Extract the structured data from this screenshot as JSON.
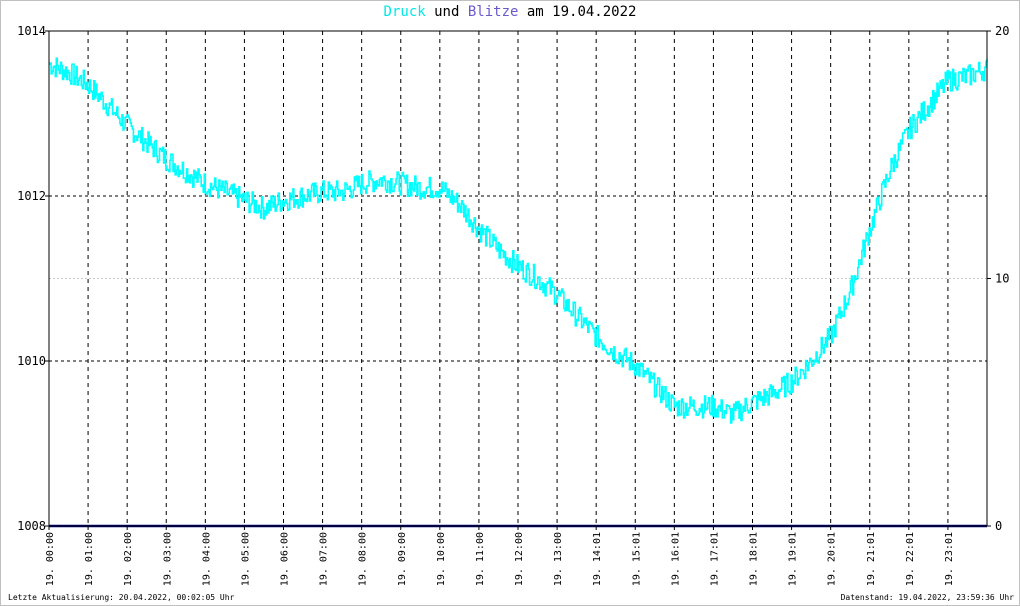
{
  "title": {
    "part1": "Druck",
    "part1_color": "#00e8e8",
    "part2": " und ",
    "part3": "Blitze",
    "part3_color": "#6a5acd",
    "part4": " am 19.04.2022"
  },
  "footer": {
    "left": "Letzte Aktualisierung: 20.04.2022, 00:02:05 Uhr",
    "right": "Datenstand: 19.04.2022, 23:59:36 Uhr"
  },
  "chart_data": {
    "type": "line",
    "x_tick_labels": [
      "19. 00:00",
      "19. 01:00",
      "19. 02:00",
      "19. 03:00",
      "19. 04:00",
      "19. 05:00",
      "19. 06:00",
      "19. 07:00",
      "19. 08:00",
      "19. 09:00",
      "19. 10:00",
      "19. 11:00",
      "19. 12:00",
      "19. 13:00",
      "19. 14:01",
      "19. 15:01",
      "19. 16:01",
      "19. 17:01",
      "19. 18:01",
      "19. 19:01",
      "19. 20:01",
      "19. 21:01",
      "19. 22:01",
      "19. 23:01"
    ],
    "x_tick_hours": [
      0,
      1,
      2,
      3,
      4,
      5,
      6,
      7,
      8,
      9,
      10,
      11,
      12,
      13,
      14,
      15,
      16,
      17,
      18,
      19,
      20,
      21,
      22,
      23
    ],
    "x_range_hours": [
      0,
      24
    ],
    "left_axis": {
      "ticks": [
        "1008",
        "1010",
        "1012",
        "1014"
      ],
      "ylim": [
        1008,
        1014
      ]
    },
    "right_axis": {
      "ticks": [
        "0",
        "10",
        "20"
      ],
      "ylim": [
        0,
        20
      ]
    },
    "grid": true,
    "series": [
      {
        "name": "Druck",
        "axis": "left",
        "color": "#00ffff",
        "x": [
          0,
          0.5,
          1,
          1.5,
          2,
          2.5,
          3,
          3.5,
          4,
          4.5,
          5,
          5.5,
          6,
          6.5,
          7,
          7.5,
          8,
          8.5,
          9,
          9.5,
          10,
          10.5,
          11,
          11.5,
          12,
          12.5,
          13,
          13.5,
          14,
          14.5,
          15,
          15.5,
          16,
          16.5,
          17,
          17.5,
          18,
          18.5,
          19,
          19.5,
          20,
          20.5,
          21,
          21.5,
          22,
          22.5,
          23,
          23.5,
          24
        ],
        "y": [
          1013.6,
          1013.5,
          1013.35,
          1013.1,
          1012.85,
          1012.65,
          1012.45,
          1012.3,
          1012.15,
          1012.05,
          1011.95,
          1011.85,
          1011.95,
          1012.0,
          1012.05,
          1012.05,
          1012.15,
          1012.2,
          1012.15,
          1012.1,
          1012.1,
          1011.9,
          1011.6,
          1011.35,
          1011.15,
          1011.0,
          1010.8,
          1010.55,
          1010.3,
          1010.1,
          1009.95,
          1009.7,
          1009.45,
          1009.45,
          1009.45,
          1009.35,
          1009.5,
          1009.6,
          1009.75,
          1010.0,
          1010.3,
          1010.85,
          1011.6,
          1012.3,
          1012.8,
          1013.1,
          1013.4,
          1013.45,
          1013.55
        ]
      },
      {
        "name": "Blitze",
        "axis": "right",
        "color": "#000080",
        "x": [
          0,
          24
        ],
        "y": [
          0,
          0
        ]
      }
    ]
  }
}
